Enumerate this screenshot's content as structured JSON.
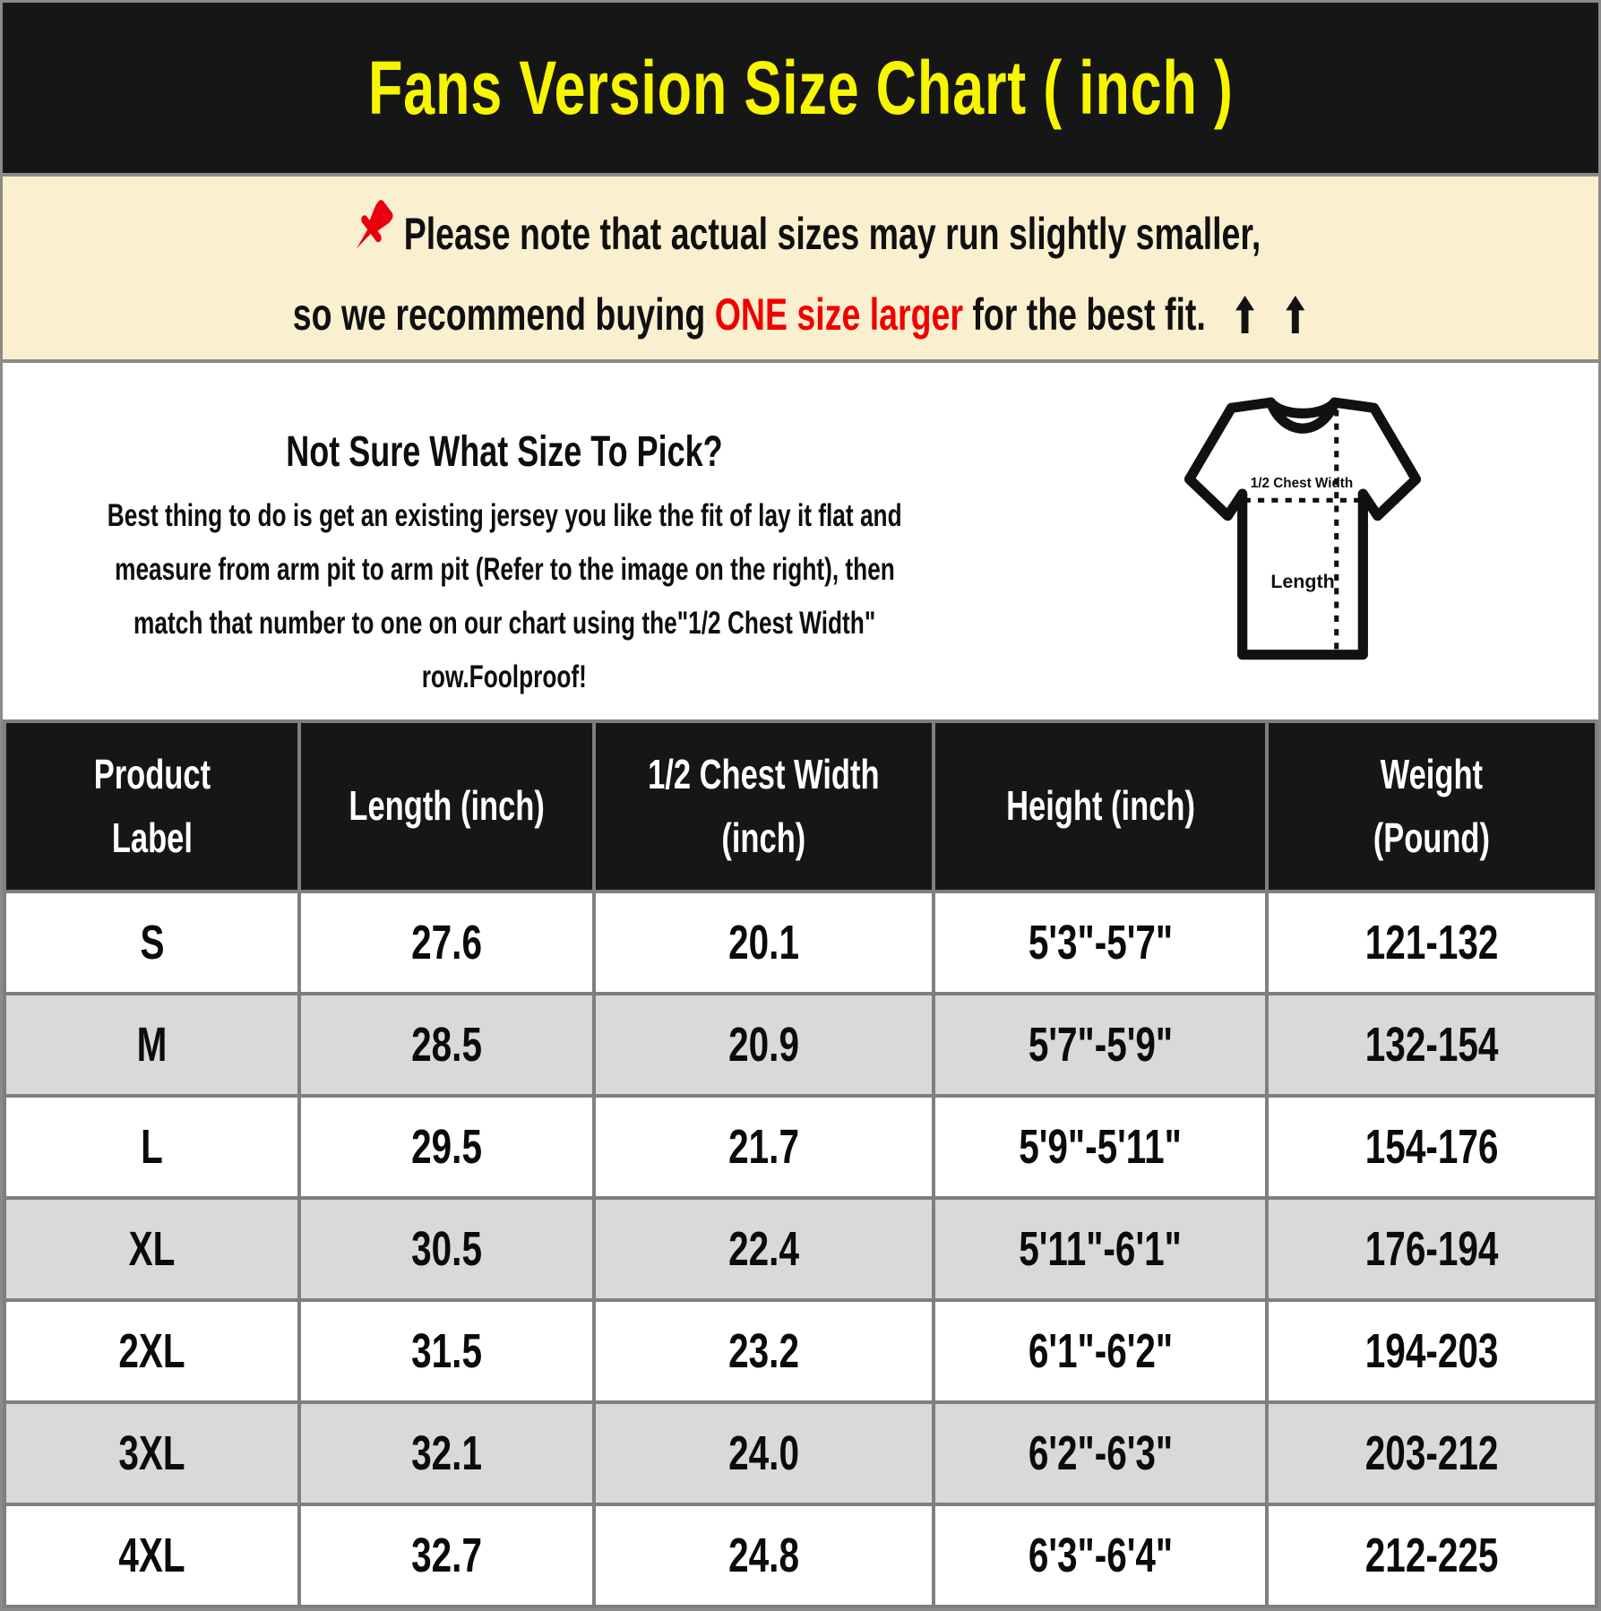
{
  "title": "Fans Version Size Chart ( inch )",
  "note": {
    "pushpin_icon": "pushpin-icon",
    "line1": "Please note that actual sizes may run slightly smaller,",
    "line2_pre": "so we recommend buying ",
    "line2_highlight": "ONE size larger",
    "line2_post": " for the best fit.",
    "arrow_icon": "up-arrow-icon",
    "background_color": "#FAF0D0",
    "highlight_color": "#F20000"
  },
  "size_help": {
    "heading": "Not Sure What Size To Pick?",
    "body_lines": [
      "Best thing to do is get an existing jersey you like the fit of lay it flat and",
      "measure from arm pit to arm pit (Refer to the image on the right), then",
      "match that number to one on our chart using the\"1/2 Chest Width\"",
      "row.Foolproof!"
    ],
    "diagram": {
      "chest_label": "1/2 Chest Width",
      "length_label": "Length"
    }
  },
  "table": {
    "headers": [
      "Product\nLabel",
      "Length (inch)",
      "1/2 Chest Width\n(inch)",
      "Height (inch)",
      "Weight\n(Pound)"
    ],
    "rows": [
      [
        "S",
        "27.6",
        "20.1",
        "5'3\"-5'7\"",
        "121-132"
      ],
      [
        "M",
        "28.5",
        "20.9",
        "5'7\"-5'9\"",
        "132-154"
      ],
      [
        "L",
        "29.5",
        "21.7",
        "5'9\"-5'11\"",
        "154-176"
      ],
      [
        "XL",
        "30.5",
        "22.4",
        "5'11\"-6'1\"",
        "176-194"
      ],
      [
        "2XL",
        "31.5",
        "23.2",
        "6'1\"-6'2\"",
        "194-203"
      ],
      [
        "3XL",
        "32.1",
        "24.0",
        "6'2\"-6'3\"",
        "203-212"
      ],
      [
        "4XL",
        "32.7",
        "24.8",
        "6'3\"-6'4\"",
        "212-225"
      ]
    ],
    "header_bg": "#161616",
    "alt_row_bg": "#D9D9D9",
    "border_color": "#7F7F7F"
  },
  "colors": {
    "title_bg": "#161616",
    "title_text": "#F8F500",
    "accent_red": "#F20000"
  }
}
